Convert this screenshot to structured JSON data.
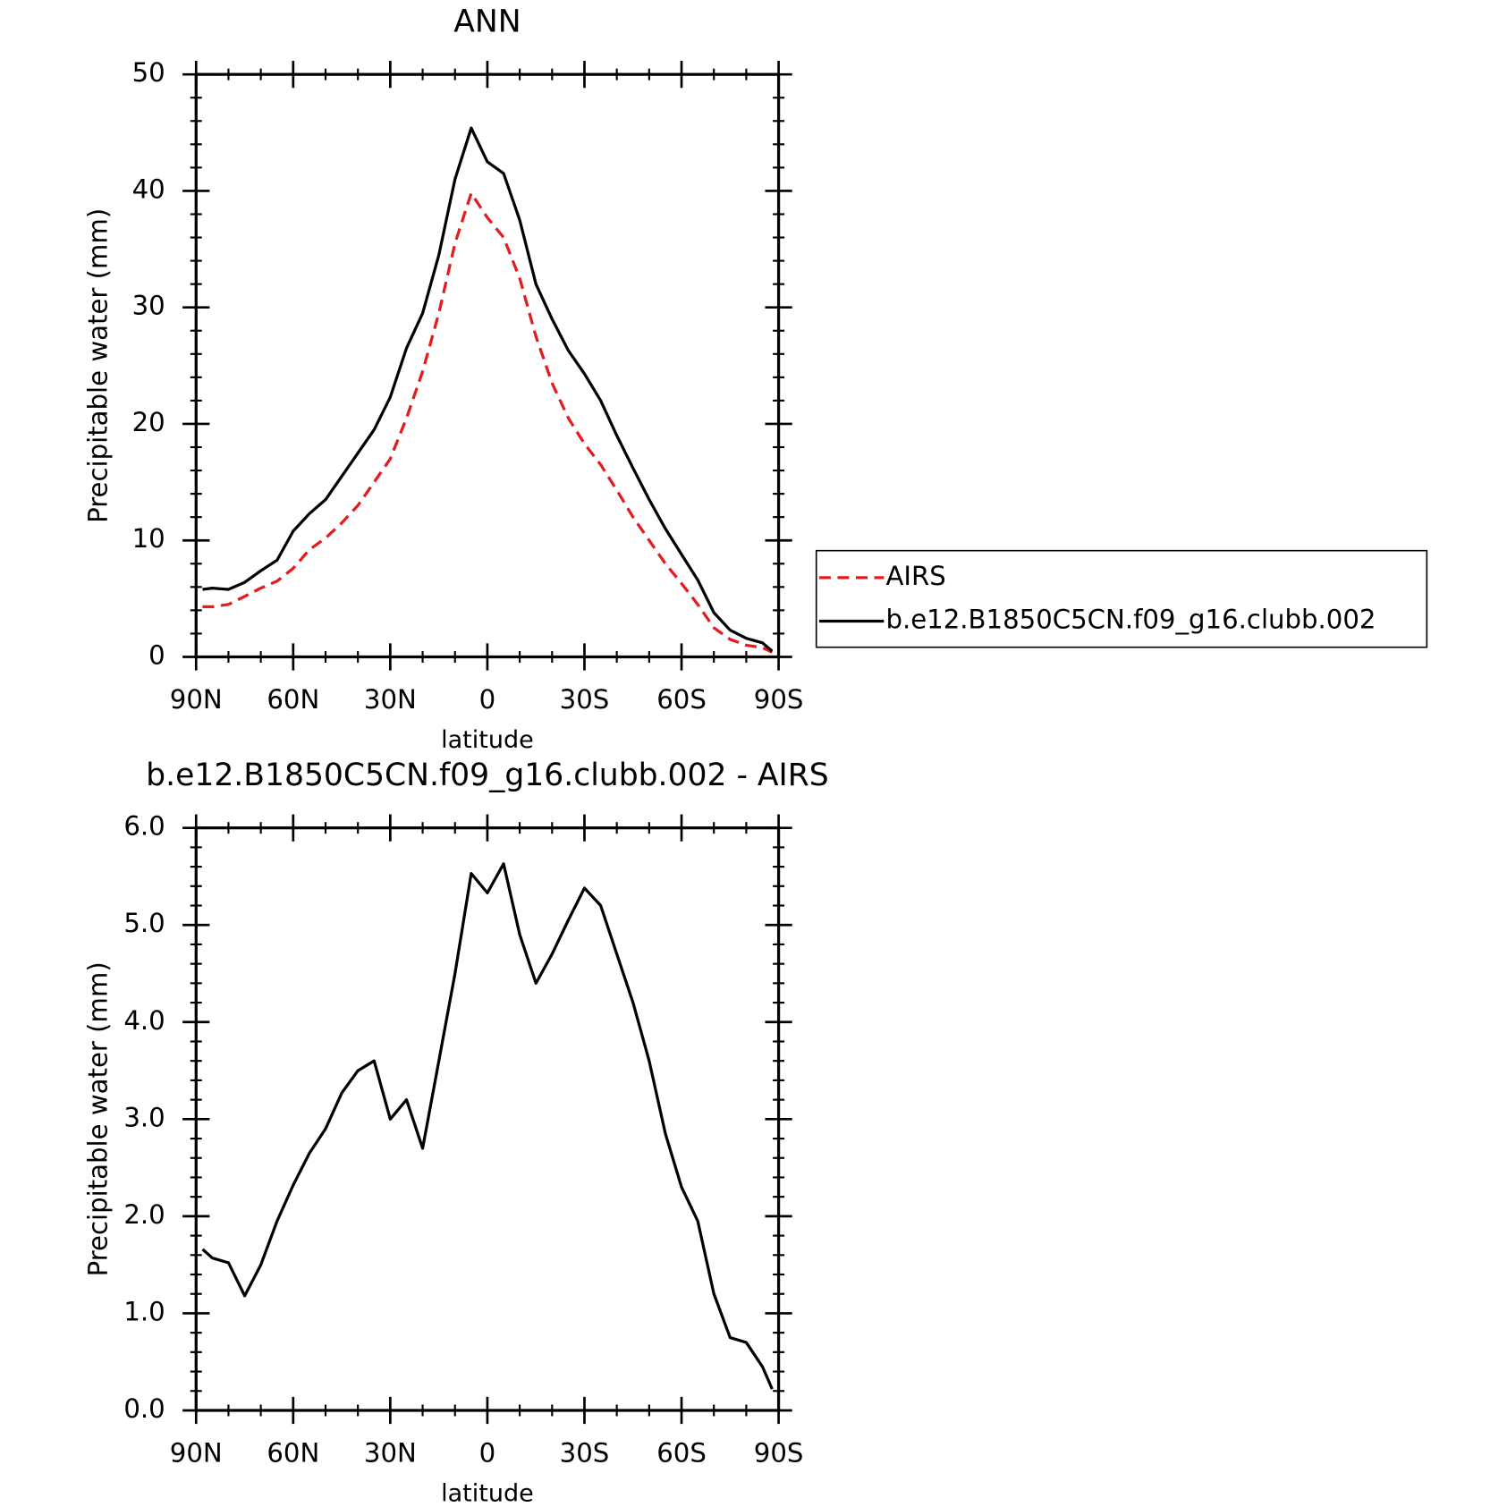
{
  "chart_data": [
    {
      "type": "line",
      "title": "ANN",
      "xlabel": "latitude",
      "ylabel": "Precipitable water (mm)",
      "x": [
        88,
        85,
        80,
        75,
        70,
        65,
        60,
        55,
        50,
        45,
        40,
        35,
        30,
        25,
        20,
        15,
        10,
        5,
        0,
        -5,
        -10,
        -15,
        -20,
        -25,
        -30,
        -35,
        -40,
        -45,
        -50,
        -55,
        -60,
        -65,
        -70,
        -75,
        -80,
        -85,
        -88
      ],
      "xlim": [
        90,
        -90
      ],
      "xticks": [
        {
          "value": 90,
          "label": "90N"
        },
        {
          "value": 60,
          "label": "60N"
        },
        {
          "value": 30,
          "label": "30N"
        },
        0,
        {
          "value": -30,
          "label": "30S"
        },
        {
          "value": -60,
          "label": "60S"
        },
        {
          "value": -90,
          "label": "90S"
        }
      ],
      "ylim": [
        0,
        50
      ],
      "yticks": [
        0,
        10,
        20,
        30,
        40,
        50
      ],
      "legend": "right",
      "series": [
        {
          "name": "AIRS",
          "color": "#e41a1c",
          "line_style": "dashed",
          "values": [
            4.3,
            4.3,
            4.5,
            5.2,
            5.9,
            6.5,
            7.6,
            9.2,
            10.2,
            11.5,
            13,
            15,
            17,
            20.5,
            24.5,
            29.5,
            35.5,
            39.8,
            37.7,
            36,
            32.5,
            27.5,
            23.5,
            20.5,
            18.3,
            16.5,
            14.3,
            12,
            10,
            8,
            6.3,
            4.5,
            2.5,
            1.5,
            1.0,
            0.8,
            0.4
          ]
        },
        {
          "name": "b.e12.B1850C5CN.f09_g16.clubb.002",
          "color": "#000000",
          "line_style": "solid",
          "values": [
            5.8,
            5.9,
            5.8,
            6.4,
            7.4,
            8.3,
            10.8,
            12.3,
            13.5,
            15.5,
            17.5,
            19.5,
            22.3,
            26.5,
            29.5,
            34.5,
            41,
            45.4,
            42.5,
            41.5,
            37.5,
            32,
            29,
            26.3,
            24.3,
            22,
            19,
            16.2,
            13.5,
            11,
            8.8,
            6.6,
            3.8,
            2.3,
            1.6,
            1.2,
            0.5
          ]
        }
      ]
    },
    {
      "type": "line",
      "title": "b.e12.B1850C5CN.f09_g16.clubb.002 - AIRS",
      "xlabel": "latitude",
      "ylabel": "Precipitable water (mm)",
      "x": [
        88,
        85,
        80,
        75,
        70,
        65,
        60,
        55,
        50,
        45,
        40,
        35,
        30,
        25,
        20,
        15,
        10,
        5,
        0,
        -5,
        -10,
        -15,
        -20,
        -25,
        -30,
        -35,
        -40,
        -45,
        -50,
        -55,
        -60,
        -65,
        -70,
        -75,
        -80,
        -85,
        -88
      ],
      "xlim": [
        90,
        -90
      ],
      "xticks": [
        {
          "value": 90,
          "label": "90N"
        },
        {
          "value": 60,
          "label": "60N"
        },
        {
          "value": 30,
          "label": "30N"
        },
        0,
        {
          "value": -30,
          "label": "30S"
        },
        {
          "value": -60,
          "label": "60S"
        },
        {
          "value": -90,
          "label": "90S"
        }
      ],
      "ylim": [
        0,
        6
      ],
      "yticks": [
        {
          "value": 0,
          "label": "0.0"
        },
        {
          "value": 1,
          "label": "1.0"
        },
        {
          "value": 2,
          "label": "2.0"
        },
        {
          "value": 3,
          "label": "3.0"
        },
        {
          "value": 4,
          "label": "4.0"
        },
        {
          "value": 5,
          "label": "5.0"
        },
        {
          "value": 6,
          "label": "6.0"
        }
      ],
      "series": [
        {
          "color": "#000000",
          "line_style": "solid",
          "values": [
            1.66,
            1.57,
            1.52,
            1.18,
            1.5,
            1.95,
            2.32,
            2.65,
            2.9,
            3.27,
            3.5,
            3.6,
            3.0,
            3.2,
            2.7,
            3.6,
            4.5,
            5.53,
            5.33,
            5.63,
            4.9,
            4.4,
            4.7,
            5.05,
            5.38,
            5.2,
            4.7,
            4.2,
            3.6,
            2.85,
            2.3,
            1.95,
            1.2,
            0.75,
            0.7,
            0.45,
            0.22
          ]
        }
      ]
    }
  ]
}
